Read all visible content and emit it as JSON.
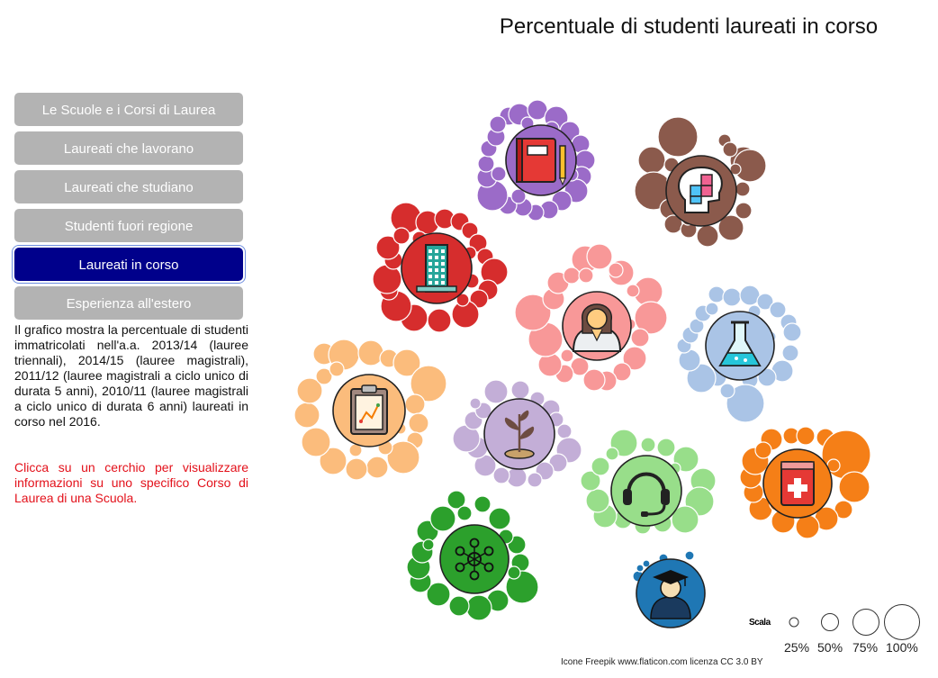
{
  "title": "Percentuale di studenti laureati in corso",
  "nav": [
    {
      "label": "Le Scuole e i Corsi di Laurea",
      "active": false
    },
    {
      "label": "Laureati che lavorano",
      "active": false
    },
    {
      "label": "Laureati che studiano",
      "active": false
    },
    {
      "label": "Studenti fuori regione",
      "active": false
    },
    {
      "label": "Laureati in corso",
      "active": true
    },
    {
      "label": "Esperienza all'estero",
      "active": false
    }
  ],
  "description": "Il grafico mostra la percentuale di studenti immatricolati nell'a.a. 2013/14 (lauree triennali), 2014/15 (lauree magistrali), 2011/12 (lauree magistrali a ciclo unico di durata 5 anni), 2010/11 (lauree magistrali a ciclo unico di durata 6 anni) laureati in corso nel 2016.",
  "hint": "Clicca su un cerchio per visualizzare informazioni su uno specifico Corso di Laurea di una Scuola.",
  "legend": {
    "label": "Scala",
    "levels": [
      {
        "text": "25%",
        "value": 25
      },
      {
        "text": "50%",
        "value": 50
      },
      {
        "text": "75%",
        "value": 75
      },
      {
        "text": "100%",
        "value": 100
      }
    ]
  },
  "credit": "Icone Freepik www.flaticon.com licenza CC 3.0 BY",
  "groups": [
    {
      "color": "#9b6bc8",
      "icon": "book-icon",
      "cluster": "cluster-purple"
    },
    {
      "color": "#8b5a4c",
      "icon": "mind-puzzle-icon",
      "cluster": "cluster-brown"
    },
    {
      "color": "#d62d2d",
      "icon": "building-icon",
      "cluster": "cluster-red"
    },
    {
      "color": "#f89898",
      "icon": "doctor-icon",
      "cluster": "cluster-pink"
    },
    {
      "color": "#aac4e6",
      "icon": "flask-icon",
      "cluster": "cluster-lightblue"
    },
    {
      "color": "#fbbc7c",
      "icon": "clipboard-icon",
      "cluster": "cluster-peach"
    },
    {
      "color": "#c3aed7",
      "icon": "plant-icon",
      "cluster": "cluster-lavender"
    },
    {
      "color": "#98de8a",
      "icon": "headset-icon",
      "cluster": "cluster-lightgreen"
    },
    {
      "color": "#f57f17",
      "icon": "medical-kit-icon",
      "cluster": "cluster-orange"
    },
    {
      "color": "#2ca02c",
      "icon": "network-icon",
      "cluster": "cluster-green"
    },
    {
      "color": "#1f77b4",
      "icon": "graduate-icon",
      "cluster": "cluster-blue"
    }
  ]
}
